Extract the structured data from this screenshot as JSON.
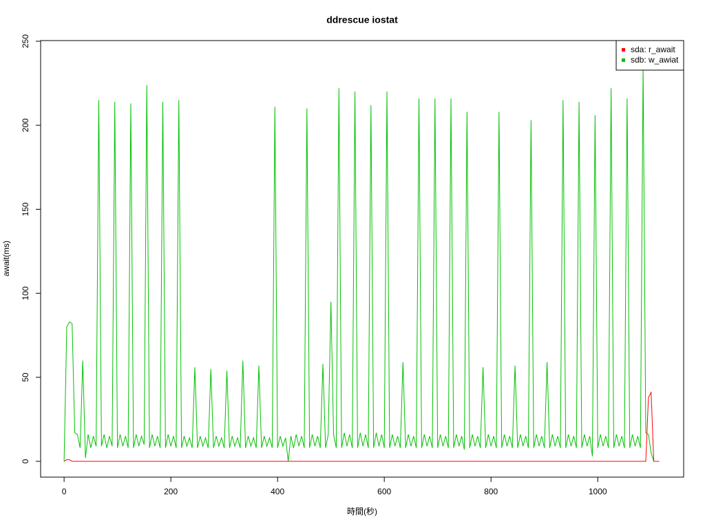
{
  "chart_data": {
    "type": "line",
    "title": "ddrescue iostat",
    "x_label": "時間(秒)",
    "y_label": "await(ms)",
    "xlim": [
      -44,
      1161
    ],
    "ylim": [
      -9.4,
      250.4
    ],
    "xticks": [
      0,
      200,
      400,
      600,
      800,
      1000
    ],
    "yticks": [
      0,
      50,
      100,
      150,
      200,
      250
    ],
    "legend": "top-right",
    "x": [
      0,
      5,
      10,
      15,
      20,
      25,
      30,
      35,
      40,
      45,
      50,
      55,
      60,
      65,
      70,
      75,
      80,
      85,
      90,
      95,
      100,
      105,
      110,
      115,
      120,
      125,
      130,
      135,
      140,
      145,
      150,
      155,
      160,
      165,
      170,
      175,
      180,
      185,
      190,
      195,
      200,
      205,
      210,
      215,
      220,
      225,
      230,
      235,
      240,
      245,
      250,
      255,
      260,
      265,
      270,
      275,
      280,
      285,
      290,
      295,
      300,
      305,
      310,
      315,
      320,
      325,
      330,
      335,
      340,
      345,
      350,
      355,
      360,
      365,
      370,
      375,
      380,
      385,
      390,
      395,
      400,
      405,
      410,
      415,
      420,
      425,
      430,
      435,
      440,
      445,
      450,
      455,
      460,
      465,
      470,
      475,
      480,
      485,
      490,
      495,
      500,
      505,
      510,
      515,
      520,
      525,
      530,
      535,
      540,
      545,
      550,
      555,
      560,
      565,
      570,
      575,
      580,
      585,
      590,
      595,
      600,
      605,
      610,
      615,
      620,
      625,
      630,
      635,
      640,
      645,
      650,
      655,
      660,
      665,
      670,
      675,
      680,
      685,
      690,
      695,
      700,
      705,
      710,
      715,
      720,
      725,
      730,
      735,
      740,
      745,
      750,
      755,
      760,
      765,
      770,
      775,
      780,
      785,
      790,
      795,
      800,
      805,
      810,
      815,
      820,
      825,
      830,
      835,
      840,
      845,
      850,
      855,
      860,
      865,
      870,
      875,
      880,
      885,
      890,
      895,
      900,
      905,
      910,
      915,
      920,
      925,
      930,
      935,
      940,
      945,
      950,
      955,
      960,
      965,
      970,
      975,
      980,
      985,
      990,
      995,
      1000,
      1005,
      1010,
      1015,
      1020,
      1025,
      1030,
      1035,
      1040,
      1045,
      1050,
      1055,
      1060,
      1065,
      1070,
      1075,
      1080,
      1085,
      1090,
      1095,
      1100,
      1105,
      1110,
      1115
    ],
    "series": [
      {
        "name": "sda: r_await",
        "color": "#ff0000",
        "values": [
          0,
          1,
          1,
          0,
          0,
          0,
          0,
          0,
          0,
          0,
          0,
          0,
          0,
          0,
          0,
          0,
          0,
          0,
          0,
          0,
          0,
          0,
          0,
          0,
          0,
          0,
          0,
          0,
          0,
          0,
          0,
          0,
          0,
          0,
          0,
          0,
          0,
          0,
          0,
          0,
          0,
          0,
          0,
          0,
          0,
          0,
          0,
          0,
          0,
          0,
          0,
          0,
          0,
          0,
          0,
          0,
          0,
          0,
          0,
          0,
          0,
          0,
          0,
          0,
          0,
          0,
          0,
          0,
          0,
          0,
          0,
          0,
          0,
          0,
          0,
          0,
          0,
          0,
          0,
          0,
          0,
          0,
          0,
          0,
          0,
          0,
          0,
          0,
          0,
          0,
          0,
          0,
          0,
          0,
          0,
          0,
          0,
          0,
          0,
          0,
          0,
          0,
          0,
          0,
          0,
          0,
          0,
          0,
          0,
          0,
          0,
          0,
          0,
          0,
          0,
          0,
          0,
          0,
          0,
          0,
          0,
          0,
          0,
          0,
          0,
          0,
          0,
          0,
          0,
          0,
          0,
          0,
          0,
          0,
          0,
          0,
          0,
          0,
          0,
          0,
          0,
          0,
          0,
          0,
          0,
          0,
          0,
          0,
          0,
          0,
          0,
          0,
          0,
          0,
          0,
          0,
          0,
          0,
          0,
          0,
          0,
          0,
          0,
          0,
          0,
          0,
          0,
          0,
          0,
          0,
          0,
          0,
          0,
          0,
          0,
          0,
          0,
          0,
          0,
          0,
          0,
          0,
          0,
          0,
          0,
          0,
          0,
          0,
          0,
          0,
          0,
          0,
          0,
          0,
          0,
          0,
          0,
          0,
          0,
          0,
          0,
          0,
          0,
          0,
          0,
          0,
          0,
          0,
          0,
          0,
          0,
          0,
          0,
          0,
          0,
          0,
          0,
          0,
          0,
          38,
          41,
          0,
          0,
          0
        ]
      },
      {
        "name": "sdb: w_awiat",
        "color": "#00c000",
        "values": [
          0,
          80,
          83,
          82,
          17,
          16,
          8,
          60,
          2,
          16,
          8,
          15,
          9,
          215,
          9,
          16,
          8,
          15,
          9,
          214,
          8,
          16,
          9,
          15,
          8,
          213,
          8,
          16,
          9,
          15,
          10,
          224,
          8,
          16,
          9,
          15,
          8,
          214,
          8,
          16,
          9,
          15,
          8,
          215,
          8,
          15,
          9,
          14,
          8,
          56,
          8,
          15,
          9,
          14,
          8,
          55,
          8,
          15,
          9,
          14,
          8,
          54,
          8,
          15,
          9,
          14,
          8,
          60,
          8,
          15,
          9,
          14,
          8,
          57,
          8,
          15,
          9,
          14,
          8,
          211,
          8,
          15,
          9,
          14,
          0,
          15,
          8,
          16,
          9,
          15,
          8,
          210,
          8,
          16,
          9,
          15,
          8,
          58,
          8,
          16,
          95,
          16,
          8,
          222,
          8,
          17,
          9,
          16,
          8,
          220,
          8,
          17,
          9,
          16,
          8,
          212,
          8,
          17,
          9,
          16,
          8,
          220,
          8,
          16,
          9,
          15,
          8,
          59,
          8,
          16,
          9,
          15,
          8,
          216,
          8,
          16,
          9,
          15,
          8,
          216,
          8,
          16,
          9,
          15,
          8,
          216,
          8,
          16,
          9,
          15,
          7,
          208,
          8,
          16,
          9,
          15,
          8,
          56,
          8,
          16,
          9,
          15,
          8,
          208,
          8,
          16,
          9,
          15,
          8,
          57,
          8,
          16,
          9,
          15,
          8,
          203,
          8,
          16,
          9,
          15,
          8,
          59,
          8,
          16,
          9,
          15,
          8,
          215,
          8,
          16,
          9,
          15,
          8,
          214,
          8,
          16,
          9,
          15,
          3,
          206,
          8,
          16,
          9,
          15,
          8,
          222,
          8,
          16,
          9,
          15,
          8,
          216,
          8,
          16,
          9,
          15,
          8,
          235,
          17,
          16,
          5,
          0,
          0,
          0
        ]
      }
    ]
  }
}
